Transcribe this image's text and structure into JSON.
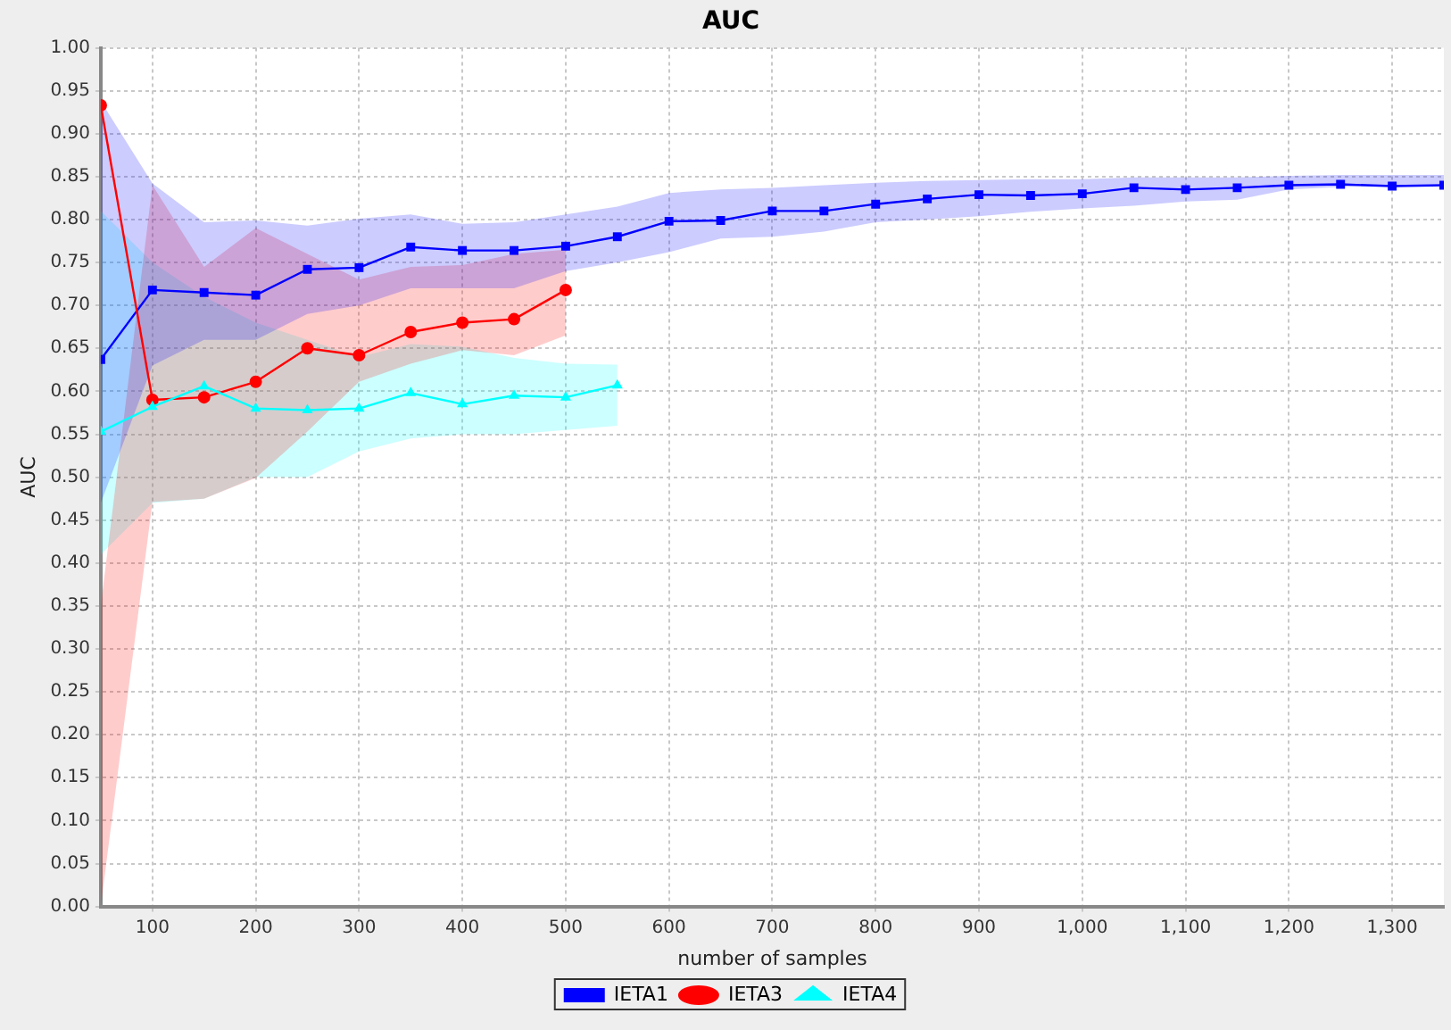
{
  "chart_data": {
    "type": "line",
    "title": "AUC",
    "xlabel": "number of samples",
    "ylabel": "AUC",
    "xlim": [
      50,
      1350
    ],
    "xticks": [
      100,
      200,
      300,
      400,
      500,
      600,
      700,
      800,
      900,
      {
        "value": 1000,
        "label": "1,000"
      },
      {
        "value": 1100,
        "label": "1,100"
      },
      {
        "value": 1200,
        "label": "1,200"
      },
      {
        "value": 1300,
        "label": "1,300"
      }
    ],
    "ylim": [
      0,
      1
    ],
    "yticks": [
      {
        "value": 0,
        "label": "0.00"
      },
      {
        "value": 0.05,
        "label": "0.05"
      },
      {
        "value": 0.1,
        "label": "0.10"
      },
      {
        "value": 0.15,
        "label": "0.15"
      },
      {
        "value": 0.2,
        "label": "0.20"
      },
      {
        "value": 0.25,
        "label": "0.25"
      },
      {
        "value": 0.3,
        "label": "0.30"
      },
      {
        "value": 0.35,
        "label": "0.35"
      },
      {
        "value": 0.4,
        "label": "0.40"
      },
      {
        "value": 0.45,
        "label": "0.45"
      },
      {
        "value": 0.5,
        "label": "0.50"
      },
      {
        "value": 0.55,
        "label": "0.55"
      },
      {
        "value": 0.6,
        "label": "0.60"
      },
      {
        "value": 0.65,
        "label": "0.65"
      },
      {
        "value": 0.7,
        "label": "0.70"
      },
      {
        "value": 0.75,
        "label": "0.75"
      },
      {
        "value": 0.8,
        "label": "0.80"
      },
      {
        "value": 0.85,
        "label": "0.85"
      },
      {
        "value": 0.9,
        "label": "0.90"
      },
      {
        "value": 0.95,
        "label": "0.95"
      },
      {
        "value": 1,
        "label": "1.00"
      }
    ],
    "grid": true,
    "legend": "bottom",
    "line_style": "solid",
    "series": [
      {
        "name": "IETA1",
        "color": "#0000ff",
        "marker": "square",
        "x": [
          50,
          100,
          150,
          200,
          250,
          300,
          350,
          400,
          450,
          500,
          550,
          600,
          650,
          700,
          750,
          800,
          850,
          900,
          950,
          1000,
          1050,
          1100,
          1150,
          1200,
          1250,
          1300,
          1350
        ],
        "values": [
          0.637,
          0.718,
          0.715,
          0.712,
          0.742,
          0.744,
          0.768,
          0.764,
          0.764,
          0.769,
          0.78,
          0.798,
          0.799,
          0.81,
          0.81,
          0.818,
          0.824,
          0.829,
          0.828,
          0.83,
          0.837,
          0.835,
          0.837,
          0.84,
          0.841,
          0.839,
          0.84
        ],
        "lower": [
          0.47,
          0.63,
          0.66,
          0.66,
          0.69,
          0.7,
          0.72,
          0.72,
          0.72,
          0.74,
          0.75,
          0.762,
          0.778,
          0.78,
          0.786,
          0.797,
          0.8,
          0.804,
          0.809,
          0.813,
          0.816,
          0.821,
          0.823,
          0.835,
          0.838,
          0.839,
          0.84
        ],
        "upper": [
          0.938,
          0.842,
          0.797,
          0.799,
          0.793,
          0.801,
          0.806,
          0.795,
          0.797,
          0.806,
          0.815,
          0.831,
          0.835,
          0.837,
          0.84,
          0.843,
          0.845,
          0.846,
          0.847,
          0.847,
          0.849,
          0.849,
          0.849,
          0.851,
          0.852,
          0.852,
          0.852
        ]
      },
      {
        "name": "IETA3",
        "color": "#ff0000",
        "marker": "circle",
        "x": [
          50,
          100,
          150,
          200,
          250,
          300,
          350,
          400,
          450,
          500
        ],
        "values": [
          0.933,
          0.59,
          0.593,
          0.611,
          0.65,
          0.642,
          0.669,
          0.68,
          0.684,
          0.718
        ],
        "lower": [
          0,
          0.471,
          0.475,
          0.499,
          0.553,
          0.611,
          0.632,
          0.648,
          0.642,
          0.665
        ],
        "upper": [
          0.35,
          0.84,
          0.745,
          0.79,
          0.76,
          0.73,
          0.745,
          0.747,
          0.76,
          0.765
        ]
      },
      {
        "name": "IETA4",
        "color": "#00ffff",
        "marker": "triangle",
        "x": [
          50,
          100,
          150,
          200,
          250,
          300,
          350,
          400,
          450,
          500,
          550
        ],
        "values": [
          0.553,
          0.582,
          0.606,
          0.58,
          0.578,
          0.58,
          0.598,
          0.585,
          0.595,
          0.593,
          0.607
        ],
        "lower": [
          0.41,
          0.47,
          0.475,
          0.5,
          0.5,
          0.53,
          0.545,
          0.55,
          0.55,
          0.555,
          0.56
        ],
        "upper": [
          0.81,
          0.75,
          0.71,
          0.68,
          0.66,
          0.64,
          0.655,
          0.652,
          0.639,
          0.632,
          0.631
        ]
      }
    ]
  }
}
